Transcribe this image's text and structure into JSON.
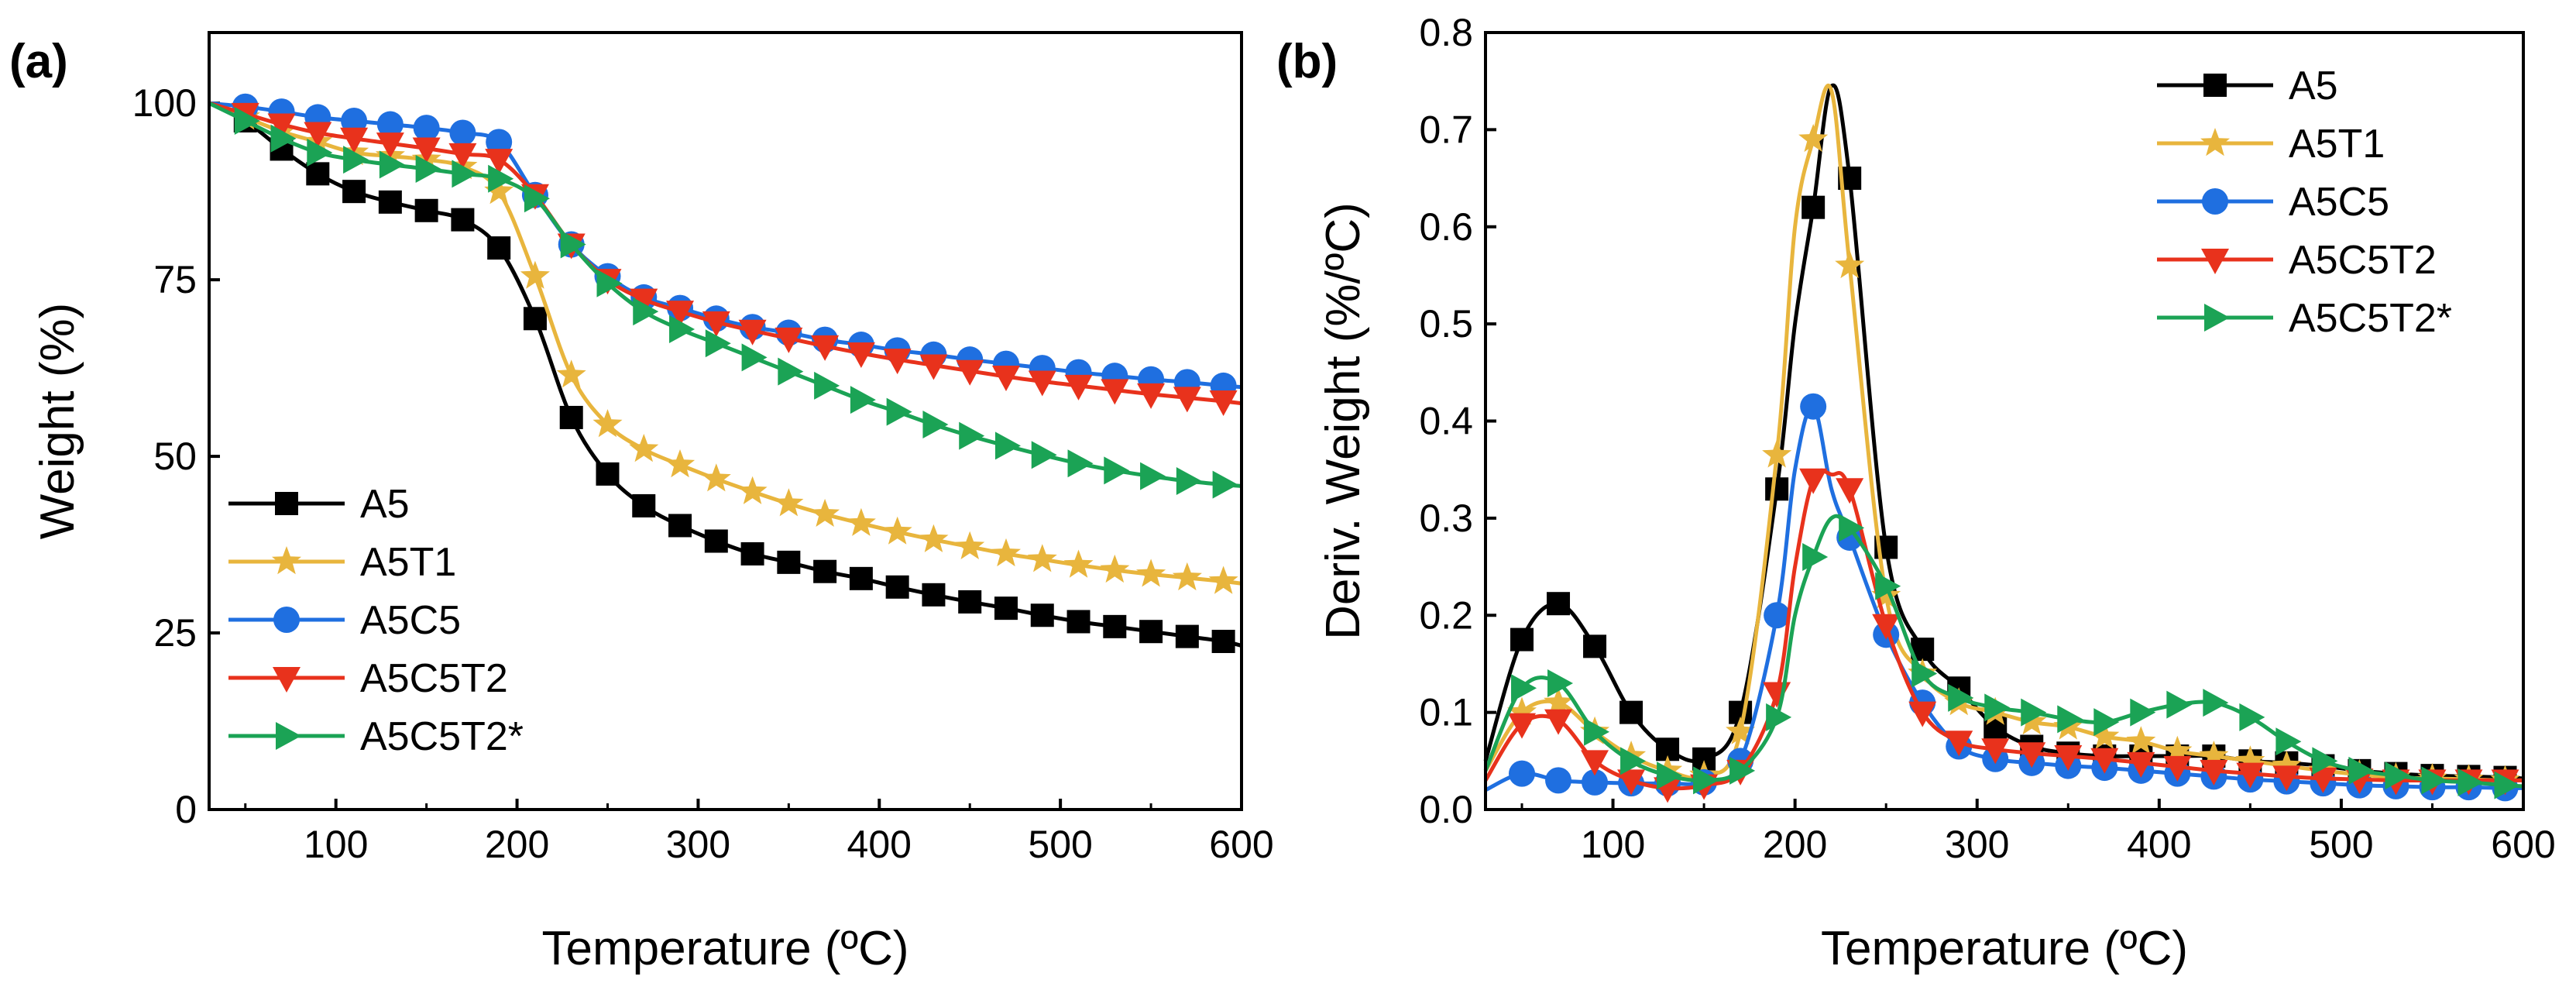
{
  "chart_data": [
    {
      "panel": "(a)",
      "type": "line",
      "xlabel": "Temperature (ºC)",
      "ylabel": "Weight (%)",
      "xlim": [
        30,
        600
      ],
      "ylim": [
        0,
        110
      ],
      "xticks": [
        100,
        200,
        300,
        400,
        500,
        600
      ],
      "yticks": [
        0,
        25,
        50,
        75,
        100
      ],
      "legend_position": "bottom-left",
      "series": [
        {
          "name": "A5",
          "color": "#000000",
          "marker": "square",
          "x": [
            30,
            50,
            70,
            90,
            110,
            130,
            150,
            170,
            190,
            210,
            230,
            250,
            270,
            290,
            310,
            330,
            350,
            370,
            390,
            410,
            430,
            450,
            470,
            490,
            510,
            530,
            550,
            570,
            590,
            600
          ],
          "y": [
            100,
            97.5,
            93.5,
            90,
            87.5,
            86,
            84.8,
            83.5,
            79.5,
            69.5,
            55.5,
            47.5,
            43,
            40.2,
            38,
            36.2,
            35,
            33.7,
            32.7,
            31.5,
            30.4,
            29.4,
            28.5,
            27.5,
            26.6,
            25.9,
            25.2,
            24.5,
            23.8,
            23.2
          ]
        },
        {
          "name": "A5T1",
          "color": "#E8B53D",
          "marker": "star",
          "x": [
            30,
            50,
            70,
            90,
            110,
            130,
            150,
            170,
            190,
            210,
            230,
            250,
            270,
            290,
            310,
            330,
            350,
            370,
            390,
            410,
            430,
            450,
            470,
            490,
            510,
            530,
            550,
            570,
            590,
            600
          ],
          "y": [
            100,
            98,
            96,
            94.5,
            93,
            92.5,
            92,
            91,
            87.5,
            75.5,
            61.5,
            54.5,
            51,
            48.8,
            46.8,
            45,
            43.3,
            41.8,
            40.5,
            39.3,
            38.2,
            37.2,
            36.2,
            35.4,
            34.6,
            33.9,
            33.3,
            32.8,
            32.3,
            32
          ]
        },
        {
          "name": "A5C5",
          "color": "#1F6FE0",
          "marker": "circle",
          "x": [
            30,
            50,
            70,
            90,
            110,
            130,
            150,
            170,
            190,
            210,
            230,
            250,
            270,
            290,
            310,
            330,
            350,
            370,
            390,
            410,
            430,
            450,
            470,
            490,
            510,
            530,
            550,
            570,
            590,
            600
          ],
          "y": [
            100,
            99.5,
            98.8,
            98,
            97.5,
            97,
            96.5,
            95.8,
            94.5,
            87,
            80,
            75.5,
            72.5,
            71,
            69.5,
            68.3,
            67.5,
            66.5,
            65.8,
            65,
            64.4,
            63.7,
            63.1,
            62.5,
            61.9,
            61.4,
            60.9,
            60.5,
            60,
            59.8
          ]
        },
        {
          "name": "A5C5T2",
          "color": "#E8321C",
          "marker": "triangle-down",
          "x": [
            30,
            50,
            70,
            90,
            110,
            130,
            150,
            170,
            190,
            210,
            230,
            250,
            270,
            290,
            310,
            330,
            350,
            370,
            390,
            410,
            430,
            450,
            470,
            490,
            510,
            530,
            550,
            570,
            590,
            600
          ],
          "y": [
            100,
            98.5,
            97,
            95.8,
            95,
            94.3,
            93.6,
            92.8,
            92,
            87,
            80,
            75,
            72.2,
            70.5,
            69,
            67.8,
            66.7,
            65.6,
            64.6,
            63.7,
            62.9,
            62.1,
            61.3,
            60.6,
            60,
            59.4,
            58.8,
            58.3,
            57.8,
            57.5
          ]
        },
        {
          "name": "A5C5T2*",
          "color": "#1BA355",
          "marker": "triangle-right",
          "x": [
            30,
            50,
            70,
            90,
            110,
            130,
            150,
            170,
            190,
            210,
            230,
            250,
            270,
            290,
            310,
            330,
            350,
            370,
            390,
            410,
            430,
            450,
            470,
            490,
            510,
            530,
            550,
            570,
            590,
            600
          ],
          "y": [
            100,
            97.5,
            95,
            93,
            92,
            91.3,
            90.7,
            90,
            89.3,
            86.5,
            80,
            74.5,
            70.5,
            68,
            66,
            64,
            62,
            60,
            58,
            56.3,
            54.5,
            52.9,
            51.5,
            50.2,
            49,
            48,
            47.2,
            46.5,
            46,
            45.8
          ]
        }
      ]
    },
    {
      "panel": "(b)",
      "type": "line",
      "xlabel": "Temperature (ºC)",
      "ylabel": "Deriv. Weight (%/ºC)",
      "xlim": [
        30,
        600
      ],
      "ylim": [
        0,
        0.8
      ],
      "xticks": [
        100,
        200,
        300,
        400,
        500,
        600
      ],
      "yticks": [
        0.0,
        0.1,
        0.2,
        0.3,
        0.4,
        0.5,
        0.6,
        0.7,
        0.8
      ],
      "legend_position": "top-right",
      "series": [
        {
          "name": "A5",
          "color": "#000000",
          "marker": "square",
          "x": [
            30,
            50,
            70,
            90,
            110,
            130,
            150,
            170,
            190,
            200,
            210,
            220,
            230,
            250,
            270,
            290,
            310,
            330,
            350,
            370,
            390,
            410,
            430,
            450,
            470,
            490,
            510,
            530,
            550,
            570,
            590,
            600
          ],
          "y": [
            0.05,
            0.175,
            0.212,
            0.168,
            0.1,
            0.062,
            0.052,
            0.1,
            0.33,
            0.5,
            0.62,
            0.745,
            0.65,
            0.27,
            0.165,
            0.125,
            0.085,
            0.065,
            0.058,
            0.055,
            0.055,
            0.055,
            0.055,
            0.05,
            0.048,
            0.045,
            0.04,
            0.037,
            0.035,
            0.034,
            0.033,
            0.032
          ]
        },
        {
          "name": "A5T1",
          "color": "#E8B53D",
          "marker": "star",
          "x": [
            30,
            50,
            70,
            90,
            110,
            130,
            150,
            170,
            190,
            200,
            210,
            220,
            230,
            250,
            270,
            290,
            310,
            330,
            350,
            370,
            390,
            410,
            430,
            450,
            470,
            490,
            510,
            530,
            550,
            570,
            590,
            600
          ],
          "y": [
            0.04,
            0.1,
            0.11,
            0.08,
            0.055,
            0.04,
            0.035,
            0.08,
            0.365,
            0.6,
            0.69,
            0.74,
            0.56,
            0.22,
            0.14,
            0.11,
            0.1,
            0.09,
            0.085,
            0.075,
            0.07,
            0.06,
            0.055,
            0.05,
            0.045,
            0.04,
            0.036,
            0.033,
            0.032,
            0.031,
            0.03,
            0.03
          ]
        },
        {
          "name": "A5C5",
          "color": "#1F6FE0",
          "marker": "circle",
          "x": [
            30,
            50,
            70,
            90,
            110,
            130,
            150,
            170,
            190,
            200,
            210,
            220,
            230,
            250,
            270,
            290,
            310,
            330,
            350,
            370,
            390,
            410,
            430,
            450,
            470,
            490,
            510,
            530,
            550,
            570,
            590,
            600
          ],
          "y": [
            0.02,
            0.037,
            0.03,
            0.028,
            0.027,
            0.027,
            0.028,
            0.05,
            0.2,
            0.35,
            0.415,
            0.33,
            0.28,
            0.18,
            0.11,
            0.065,
            0.052,
            0.048,
            0.045,
            0.043,
            0.04,
            0.037,
            0.034,
            0.031,
            0.029,
            0.027,
            0.025,
            0.024,
            0.023,
            0.023,
            0.022,
            0.022
          ]
        },
        {
          "name": "A5C5T2",
          "color": "#E8321C",
          "marker": "triangle-down",
          "x": [
            30,
            50,
            70,
            90,
            110,
            130,
            150,
            170,
            190,
            200,
            210,
            220,
            230,
            250,
            270,
            290,
            310,
            330,
            350,
            370,
            390,
            410,
            430,
            450,
            470,
            490,
            510,
            530,
            550,
            570,
            590,
            600
          ],
          "y": [
            0.03,
            0.088,
            0.092,
            0.05,
            0.03,
            0.022,
            0.025,
            0.04,
            0.12,
            0.25,
            0.34,
            0.345,
            0.33,
            0.19,
            0.1,
            0.07,
            0.062,
            0.058,
            0.055,
            0.052,
            0.048,
            0.044,
            0.04,
            0.037,
            0.034,
            0.032,
            0.031,
            0.03,
            0.03,
            0.03,
            0.03,
            0.03
          ]
        },
        {
          "name": "A5C5T2*",
          "color": "#1BA355",
          "marker": "triangle-right",
          "x": [
            30,
            50,
            70,
            90,
            110,
            130,
            150,
            170,
            190,
            200,
            210,
            220,
            230,
            250,
            270,
            290,
            310,
            330,
            350,
            370,
            390,
            410,
            430,
            450,
            470,
            490,
            510,
            530,
            550,
            570,
            590,
            600
          ],
          "y": [
            0.04,
            0.125,
            0.13,
            0.08,
            0.05,
            0.035,
            0.03,
            0.04,
            0.095,
            0.2,
            0.26,
            0.3,
            0.29,
            0.23,
            0.14,
            0.115,
            0.105,
            0.1,
            0.093,
            0.09,
            0.1,
            0.108,
            0.11,
            0.095,
            0.07,
            0.05,
            0.04,
            0.035,
            0.03,
            0.028,
            0.025,
            0.024
          ]
        }
      ]
    }
  ]
}
